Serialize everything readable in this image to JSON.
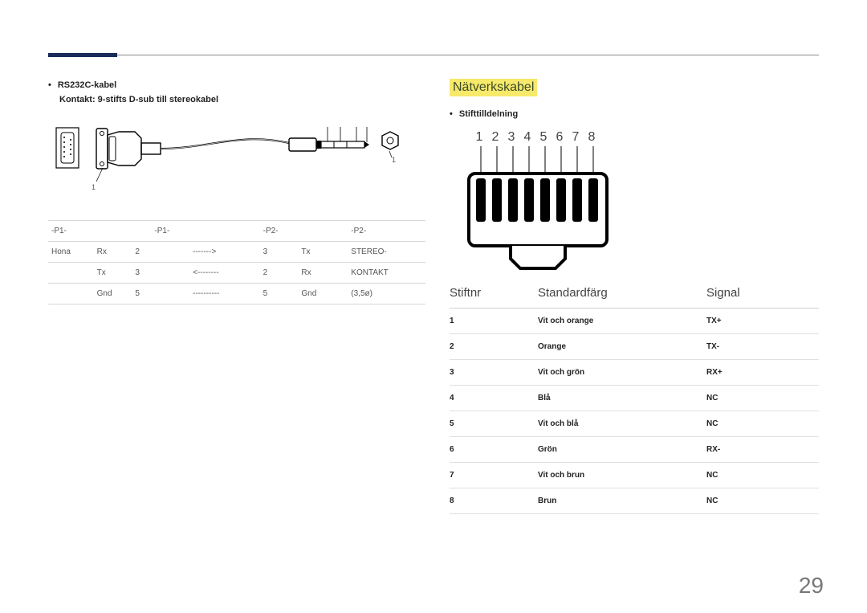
{
  "left": {
    "bullet": "RS232C-kabel",
    "sub": "Kontakt: 9-stifts D-sub till stereokabel",
    "diagram_labels": {
      "one_a": "1",
      "one_b": "1"
    },
    "table": {
      "rows": [
        [
          "-P1-",
          "",
          "",
          "-P1-",
          "",
          "",
          "-P2-",
          "",
          "",
          "-P2-"
        ],
        [
          "Hona",
          "Rx",
          "2",
          "",
          "------->",
          "",
          "3",
          "Tx",
          "",
          "STEREO-"
        ],
        [
          "",
          "Tx",
          "3",
          "",
          "<--------",
          "",
          "2",
          "Rx",
          "",
          "KONTAKT"
        ],
        [
          "",
          "Gnd",
          "5",
          "",
          "----------",
          "",
          "5",
          "Gnd",
          "",
          "(3,5ø)"
        ]
      ]
    }
  },
  "right": {
    "title": "Nätverkskabel",
    "bullet": "Stifttilldelning",
    "pin_numbers": [
      "1",
      "2",
      "3",
      "4",
      "5",
      "6",
      "7",
      "8"
    ],
    "headers": {
      "pin": "Stiftnr",
      "color": "Standardfärg",
      "signal": "Signal"
    },
    "rows": [
      {
        "pin": "1",
        "color": "Vit och orange",
        "signal": "TX+"
      },
      {
        "pin": "2",
        "color": "Orange",
        "signal": "TX-"
      },
      {
        "pin": "3",
        "color": "Vit och grön",
        "signal": "RX+"
      },
      {
        "pin": "4",
        "color": "Blå",
        "signal": "NC"
      },
      {
        "pin": "5",
        "color": "Vit och blå",
        "signal": "NC"
      },
      {
        "pin": "6",
        "color": "Grön",
        "signal": "RX-"
      },
      {
        "pin": "7",
        "color": "Vit och brun",
        "signal": "NC"
      },
      {
        "pin": "8",
        "color": "Brun",
        "signal": "NC"
      }
    ]
  },
  "page_number": "29",
  "colors": {
    "accent": "#1a2b5a",
    "highlight": "#f7e96a",
    "rule": "#888888",
    "table_border": "#d8d8d8"
  }
}
